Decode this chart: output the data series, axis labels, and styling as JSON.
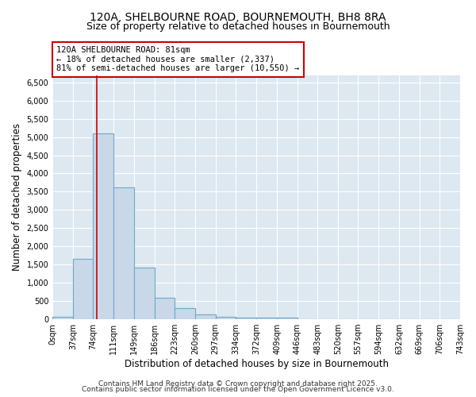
{
  "title": "120A, SHELBOURNE ROAD, BOURNEMOUTH, BH8 8RA",
  "subtitle": "Size of property relative to detached houses in Bournemouth",
  "xlabel": "Distribution of detached houses by size in Bournemouth",
  "ylabel": "Number of detached properties",
  "bar_edges": [
    0,
    37,
    74,
    111,
    149,
    186,
    223,
    260,
    297,
    334,
    372,
    409,
    446,
    483,
    520,
    557,
    594,
    632,
    669,
    706,
    743
  ],
  "bar_heights": [
    70,
    1650,
    5100,
    3620,
    1420,
    600,
    300,
    130,
    75,
    55,
    45,
    55,
    0,
    0,
    0,
    0,
    0,
    0,
    0,
    0
  ],
  "bar_color": "#c8d8e8",
  "bar_edgecolor": "#6fa8c8",
  "ylim_max": 6700,
  "yticks": [
    0,
    500,
    1000,
    1500,
    2000,
    2500,
    3000,
    3500,
    4000,
    4500,
    5000,
    5500,
    6000,
    6500
  ],
  "vline_x": 81,
  "vline_color": "#cc0000",
  "annotation_line1": "120A SHELBOURNE ROAD: 81sqm",
  "annotation_line2": "← 18% of detached houses are smaller (2,337)",
  "annotation_line3": "81% of semi-detached houses are larger (10,550) →",
  "annotation_box_color": "#cc0000",
  "footer1": "Contains HM Land Registry data © Crown copyright and database right 2025.",
  "footer2": "Contains public sector information licensed under the Open Government Licence v3.0.",
  "fig_facecolor": "#ffffff",
  "bg_color": "#dde8f0",
  "grid_color": "#ffffff",
  "tick_labels": [
    "0sqm",
    "37sqm",
    "74sqm",
    "111sqm",
    "149sqm",
    "186sqm",
    "223sqm",
    "260sqm",
    "297sqm",
    "334sqm",
    "372sqm",
    "409sqm",
    "446sqm",
    "483sqm",
    "520sqm",
    "557sqm",
    "594sqm",
    "632sqm",
    "669sqm",
    "706sqm",
    "743sqm"
  ],
  "title_fontsize": 10,
  "subtitle_fontsize": 9,
  "axis_label_fontsize": 8.5,
  "tick_fontsize": 7,
  "footer_fontsize": 6.5,
  "annotation_fontsize": 7.5
}
